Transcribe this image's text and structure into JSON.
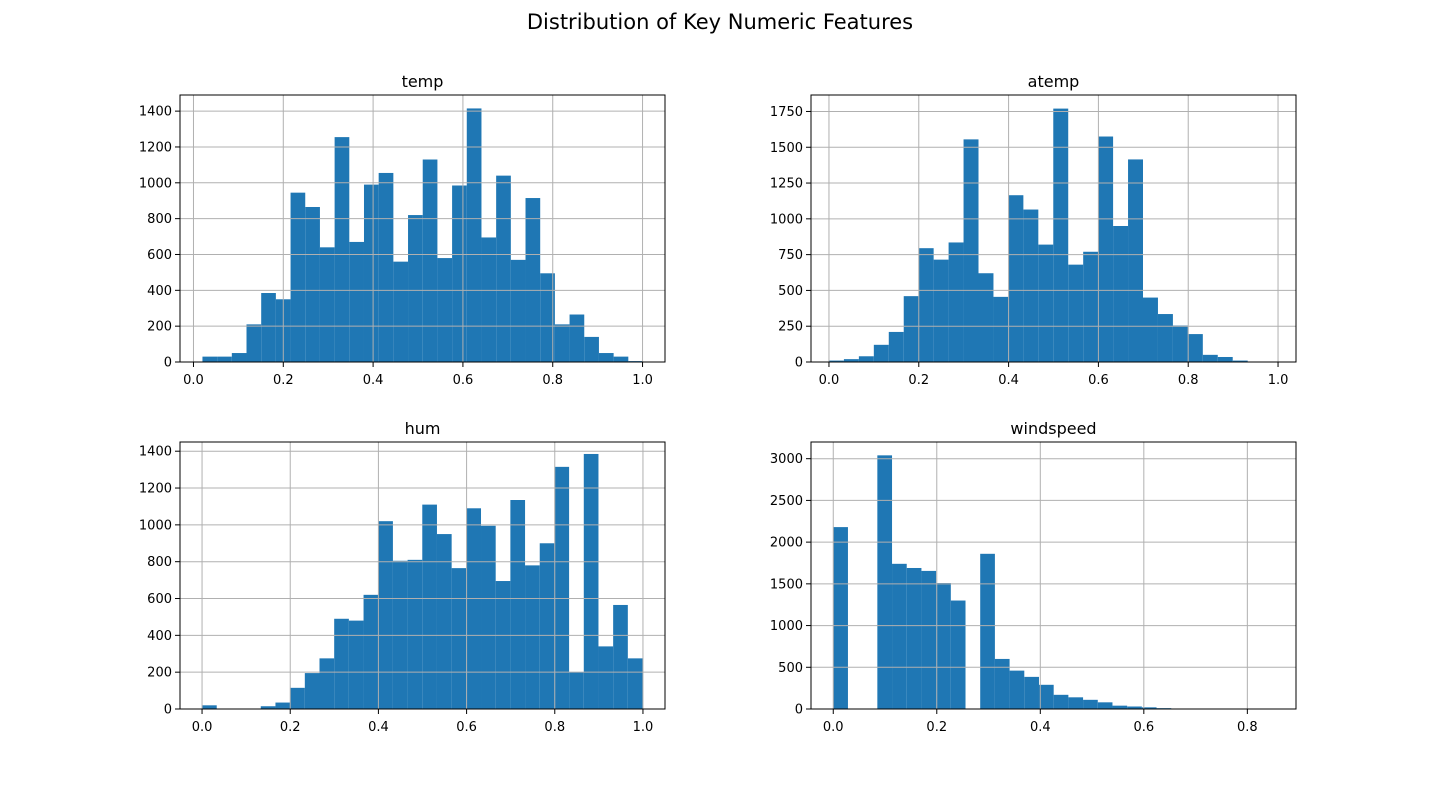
{
  "figure": {
    "title": "Distribution of Key Numeric Features"
  },
  "colors": {
    "bar": "#1f77b4",
    "grid": "#b0b0b0",
    "axis": "#000000"
  },
  "chart_data": [
    {
      "type": "bar",
      "title": "temp",
      "xlim": [
        -0.03,
        1.05
      ],
      "ylim": [
        0,
        1490
      ],
      "xticks": [
        0.0,
        0.2,
        0.4,
        0.6,
        0.8,
        1.0
      ],
      "xtick_labels": [
        "0.0",
        "0.2",
        "0.4",
        "0.6",
        "0.8",
        "1.0"
      ],
      "yticks": [
        0,
        200,
        400,
        600,
        800,
        1000,
        1200,
        1400
      ],
      "ytick_labels": [
        "0",
        "200",
        "400",
        "600",
        "800",
        "1000",
        "1200",
        "1400"
      ],
      "grid": true,
      "bin_start": 0.02,
      "bin_width": 0.0327,
      "values": [
        30,
        30,
        50,
        210,
        385,
        350,
        945,
        865,
        640,
        1255,
        670,
        990,
        1055,
        560,
        820,
        1130,
        580,
        985,
        1415,
        695,
        1040,
        570,
        915,
        495,
        210,
        265,
        140,
        50,
        30,
        5
      ]
    },
    {
      "type": "bar",
      "title": "atemp",
      "xlim": [
        -0.04,
        1.04
      ],
      "ylim": [
        0,
        1865
      ],
      "xticks": [
        0.0,
        0.2,
        0.4,
        0.6,
        0.8,
        1.0
      ],
      "xtick_labels": [
        "0.0",
        "0.2",
        "0.4",
        "0.6",
        "0.8",
        "1.0"
      ],
      "yticks": [
        0,
        250,
        500,
        750,
        1000,
        1250,
        1500,
        1750
      ],
      "ytick_labels": [
        "0",
        "250",
        "500",
        "750",
        "1000",
        "1250",
        "1500",
        "1750"
      ],
      "grid": true,
      "bin_start": 0.0,
      "bin_width": 0.0333,
      "values": [
        10,
        20,
        40,
        120,
        210,
        460,
        795,
        715,
        835,
        1555,
        620,
        455,
        1165,
        1065,
        820,
        1770,
        680,
        770,
        1575,
        950,
        1415,
        450,
        335,
        255,
        195,
        50,
        35,
        10,
        0,
        0
      ]
    },
    {
      "type": "bar",
      "title": "hum",
      "xlim": [
        -0.05,
        1.05
      ],
      "ylim": [
        0,
        1450
      ],
      "xticks": [
        0.0,
        0.2,
        0.4,
        0.6,
        0.8,
        1.0
      ],
      "xtick_labels": [
        "0.0",
        "0.2",
        "0.4",
        "0.6",
        "0.8",
        "1.0"
      ],
      "yticks": [
        0,
        200,
        400,
        600,
        800,
        1000,
        1200,
        1400
      ],
      "ytick_labels": [
        "0",
        "200",
        "400",
        "600",
        "800",
        "1000",
        "1200",
        "1400"
      ],
      "grid": true,
      "bin_start": 0.0,
      "bin_width": 0.0333,
      "values": [
        20,
        0,
        0,
        0,
        15,
        35,
        115,
        195,
        275,
        490,
        480,
        620,
        1020,
        805,
        810,
        1110,
        950,
        765,
        1090,
        995,
        695,
        1135,
        780,
        900,
        1315,
        200,
        1385,
        340,
        565,
        275
      ]
    },
    {
      "type": "bar",
      "title": "windspeed",
      "xlim": [
        -0.043,
        0.894
      ],
      "ylim": [
        0,
        3200
      ],
      "xticks": [
        0.0,
        0.2,
        0.4,
        0.6,
        0.8
      ],
      "xtick_labels": [
        "0.0",
        "0.2",
        "0.4",
        "0.6",
        "0.8"
      ],
      "yticks": [
        0,
        500,
        1000,
        1500,
        2000,
        2500,
        3000
      ],
      "ytick_labels": [
        "0",
        "500",
        "1000",
        "1500",
        "2000",
        "2500",
        "3000"
      ],
      "grid": true,
      "bin_start": 0.0,
      "bin_width": 0.02839,
      "values": [
        2180,
        0,
        0,
        3040,
        1740,
        1690,
        1655,
        1510,
        1300,
        0,
        1860,
        600,
        460,
        385,
        290,
        170,
        140,
        110,
        80,
        40,
        30,
        20,
        10,
        5,
        3,
        2,
        1,
        1,
        1,
        1
      ]
    }
  ]
}
